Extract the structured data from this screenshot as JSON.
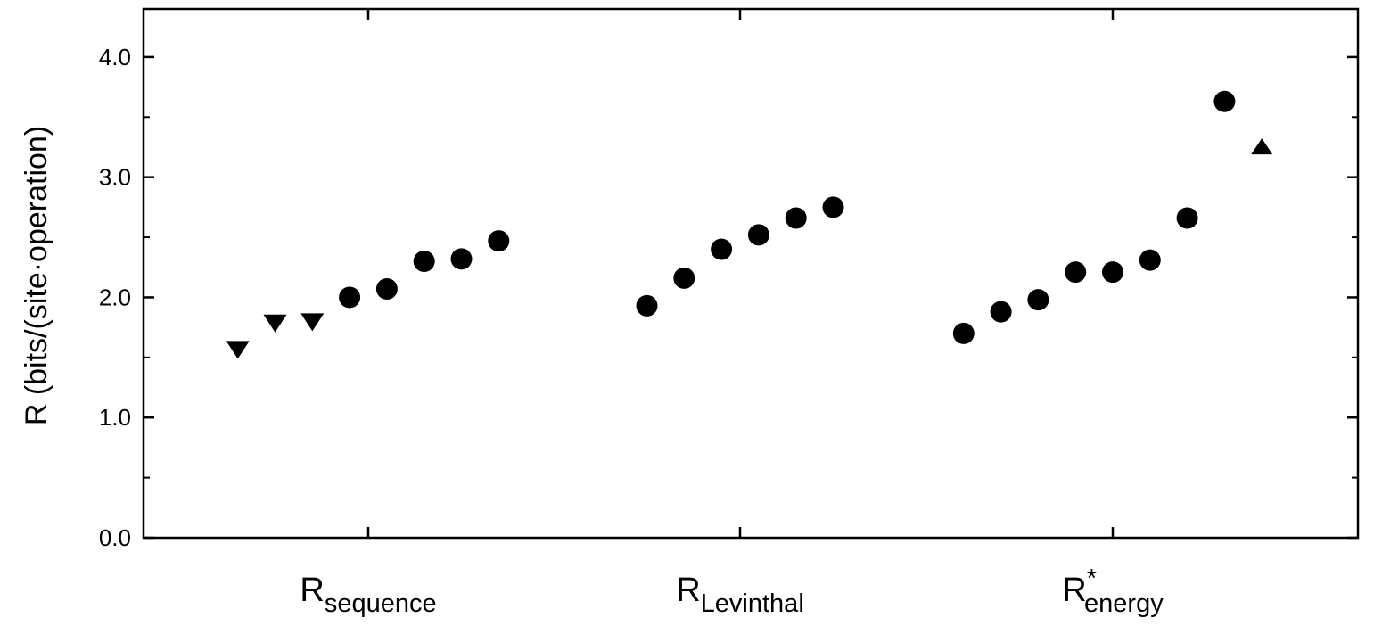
{
  "chart_data": {
    "type": "scatter",
    "ylabel": "R (bits/(site·operation)",
    "ylim": [
      0,
      4.4
    ],
    "yticks": [
      "0.0",
      "1.0",
      "2.0",
      "3.0",
      "4.0"
    ],
    "grid": false,
    "categories": [
      {
        "main": "R",
        "sub": "sequence",
        "sup": ""
      },
      {
        "main": "R",
        "sub": "Levinthal",
        "sup": ""
      },
      {
        "main": "R",
        "sub": "energy",
        "sup": "*"
      }
    ],
    "groups": [
      {
        "points": [
          {
            "y": 1.57,
            "marker": "triangle-down"
          },
          {
            "y": 1.79,
            "marker": "triangle-down"
          },
          {
            "y": 1.8,
            "marker": "triangle-down"
          },
          {
            "y": 2.0,
            "marker": "circle"
          },
          {
            "y": 2.07,
            "marker": "circle"
          },
          {
            "y": 2.3,
            "marker": "circle"
          },
          {
            "y": 2.32,
            "marker": "circle"
          },
          {
            "y": 2.47,
            "marker": "circle"
          }
        ]
      },
      {
        "points": [
          {
            "y": 1.93,
            "marker": "circle"
          },
          {
            "y": 2.16,
            "marker": "circle"
          },
          {
            "y": 2.4,
            "marker": "circle"
          },
          {
            "y": 2.52,
            "marker": "circle"
          },
          {
            "y": 2.66,
            "marker": "circle"
          },
          {
            "y": 2.75,
            "marker": "circle"
          }
        ]
      },
      {
        "points": [
          {
            "y": 1.7,
            "marker": "circle"
          },
          {
            "y": 1.88,
            "marker": "circle"
          },
          {
            "y": 1.98,
            "marker": "circle"
          },
          {
            "y": 2.21,
            "marker": "circle"
          },
          {
            "y": 2.21,
            "marker": "circle"
          },
          {
            "y": 2.31,
            "marker": "circle"
          },
          {
            "y": 2.66,
            "marker": "circle"
          },
          {
            "y": 3.63,
            "marker": "circle"
          },
          {
            "y": 3.25,
            "marker": "triangle-up"
          }
        ]
      }
    ]
  }
}
